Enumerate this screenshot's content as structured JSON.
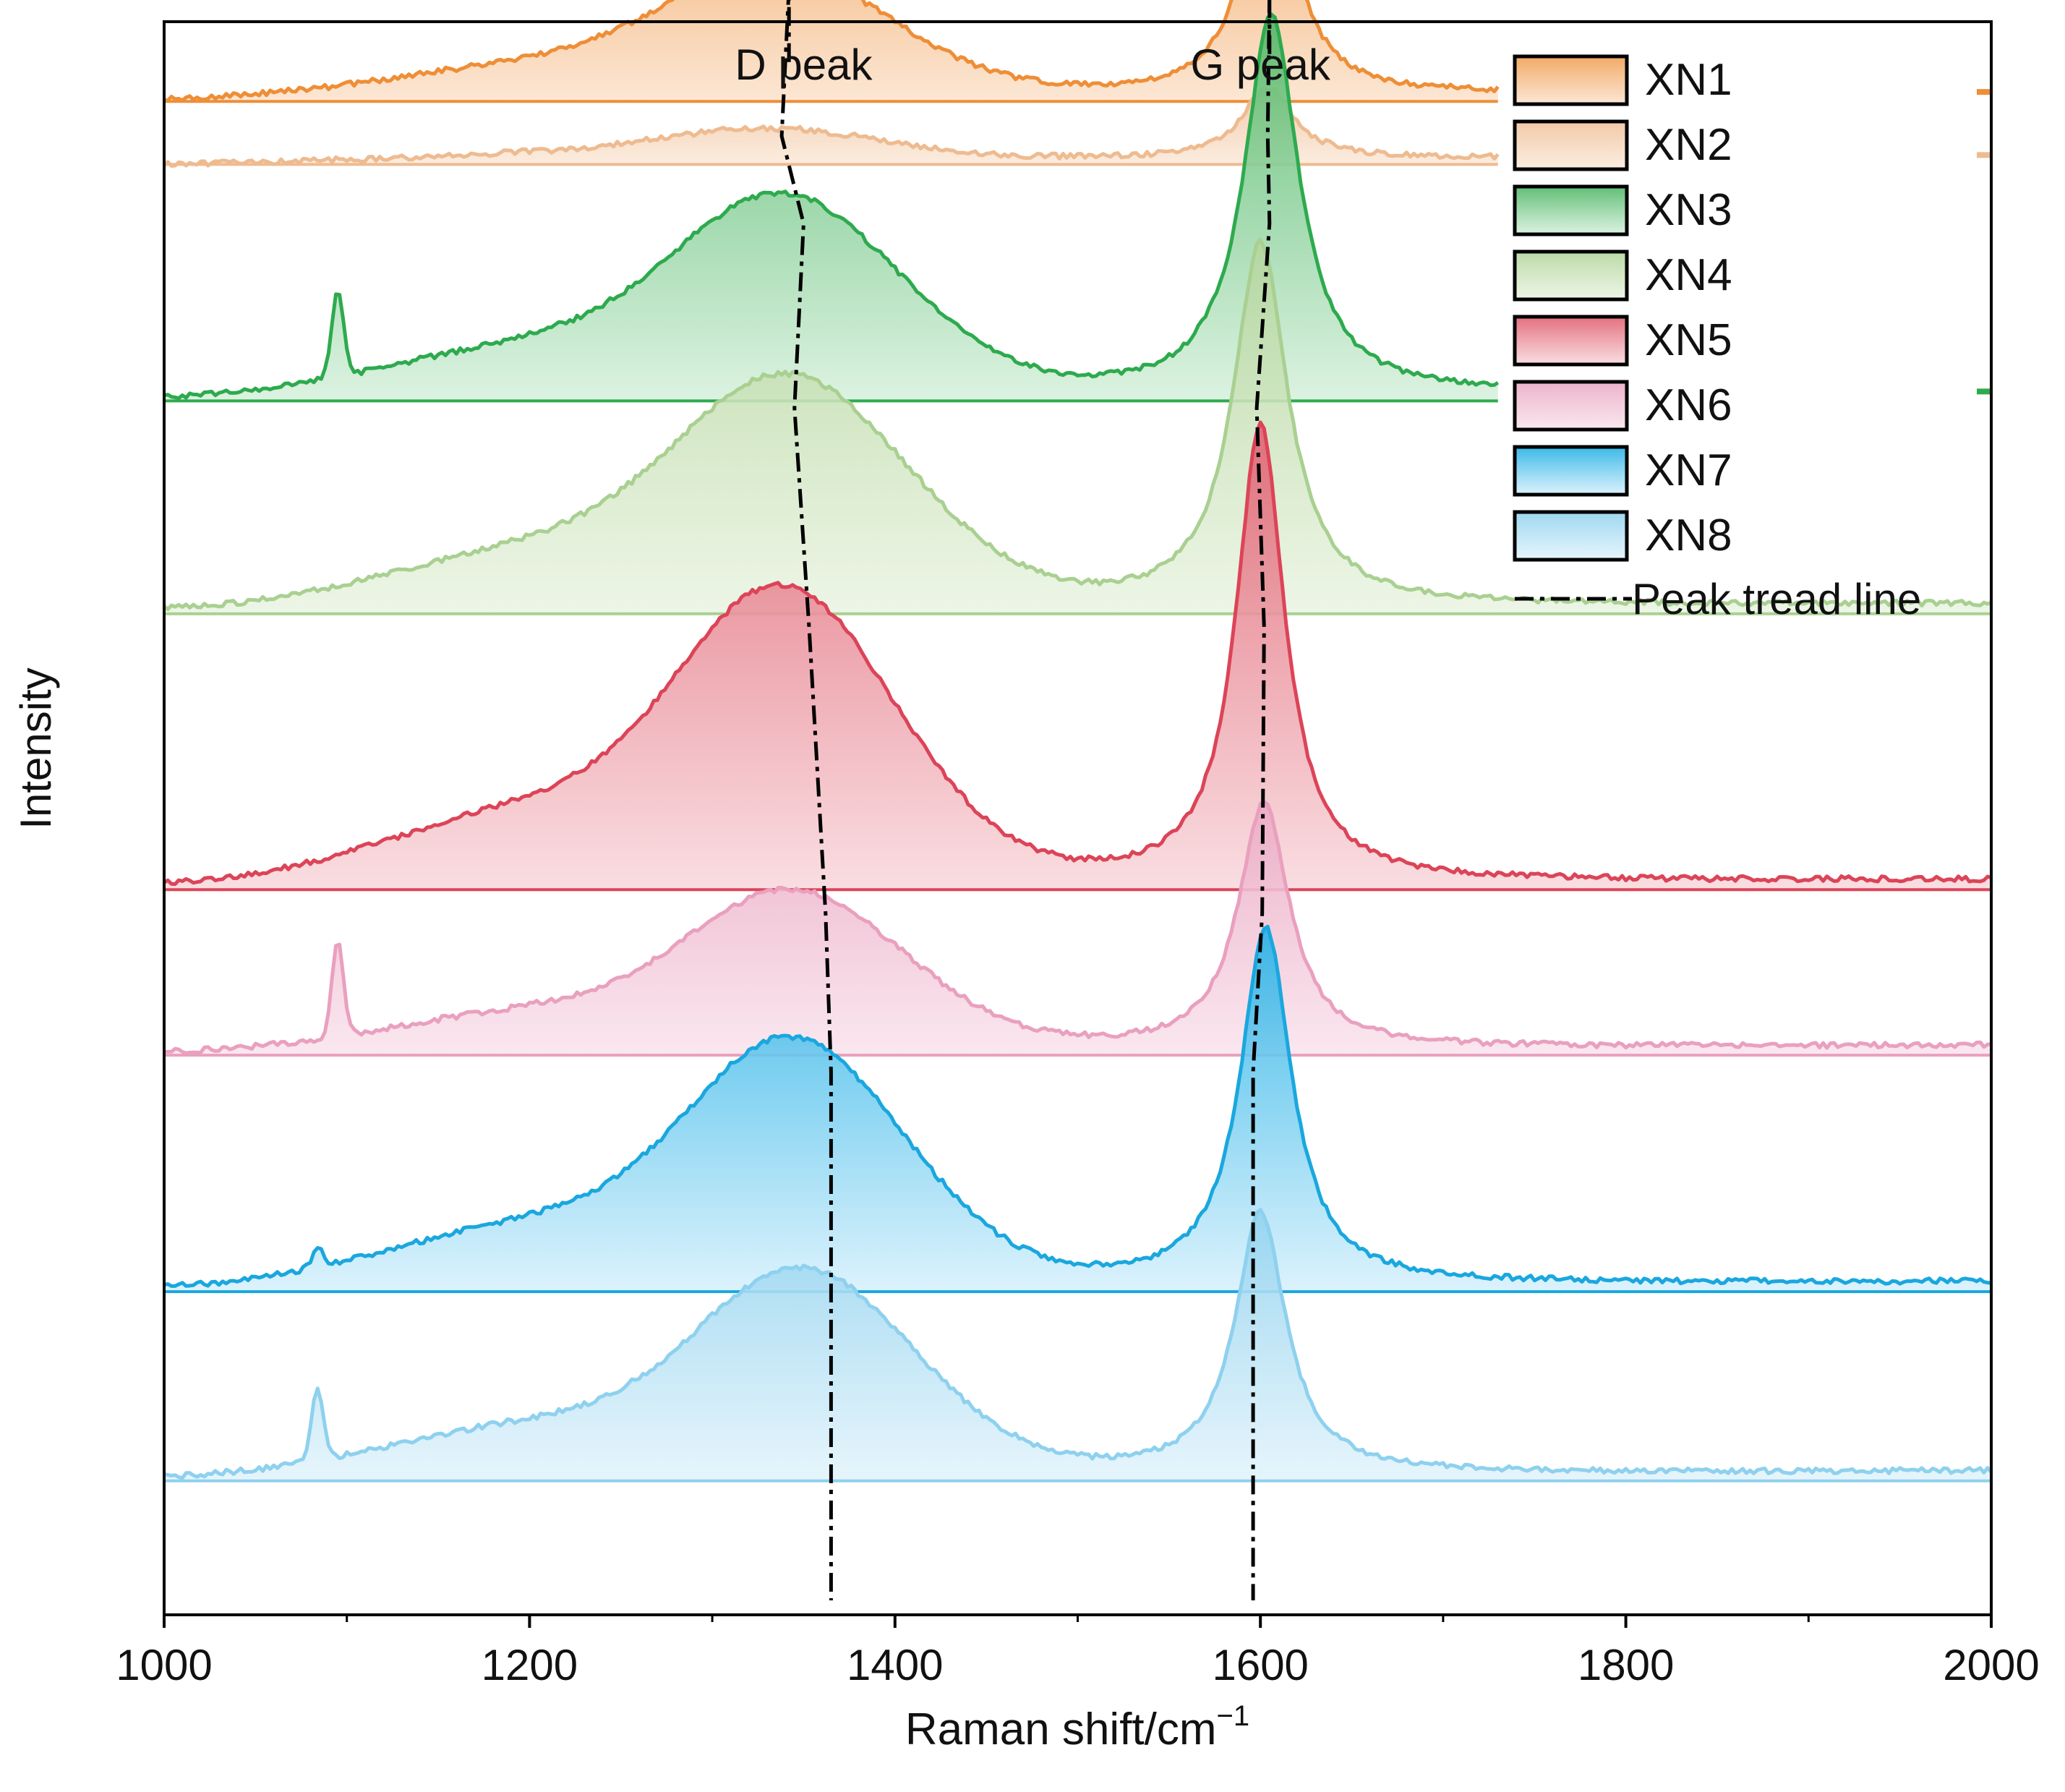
{
  "chart_data": {
    "type": "line",
    "subtype": "stacked-offset-spectra",
    "title": "",
    "xlabel": "Raman shift/cm",
    "xlabel_superscript": "−1",
    "ylabel": "Intensity",
    "xlim": [
      1000,
      2000
    ],
    "xticks": [
      "1000",
      "1200",
      "1400",
      "1600",
      "1800",
      "2000"
    ],
    "yticks_visible": false,
    "legend_position": "top-right",
    "annotations": [
      {
        "text": "D peak",
        "x": 1350
      },
      {
        "text": "G peak",
        "x": 1600
      }
    ],
    "trend_line": {
      "name": "Peak tread line",
      "style": "dash-dot",
      "color": "#000000",
      "d_peak_x": [
        1342,
        1338,
        1350,
        1345,
        1353,
        1362,
        1365
      ],
      "g_peak_x": [
        1605,
        1604,
        1605,
        1598,
        1602,
        1601,
        1596
      ]
    },
    "series": [
      {
        "name": "XN1",
        "color": "#EE8E37",
        "fill_top": "#F0A055",
        "fill_bottom": "#FBE2CC",
        "baseline": 9.6,
        "d_pos": 1340,
        "d_height": 0.8,
        "d_width": 60,
        "g_pos": 1605,
        "g_height": 1.45,
        "g_width": 17,
        "spike_pos": null,
        "spike_height": 0,
        "clip_end": 1730
      },
      {
        "name": "XN2",
        "color": "#EEBB90",
        "fill_top": "#F0C49E",
        "fill_bottom": "#FBEADB",
        "baseline": 9.2,
        "d_pos": 1338,
        "d_height": 0.2,
        "d_width": 60,
        "g_pos": 1604,
        "g_height": 0.45,
        "g_width": 17,
        "spike_pos": null,
        "spike_height": 0,
        "clip_end": 1730
      },
      {
        "name": "XN3",
        "color": "#2EAA4E",
        "fill_top": "#4FB766",
        "fill_bottom": "#D6F0DC",
        "baseline": 7.7,
        "d_pos": 1345,
        "d_height": 1.25,
        "d_width": 60,
        "g_pos": 1606,
        "g_height": 2.4,
        "g_width": 18,
        "spike_pos": 1095,
        "spike_height": 0.55,
        "clip_end": 1730
      },
      {
        "name": "XN4",
        "color": "#A9D091",
        "fill_top": "#B4D69E",
        "fill_bottom": "#EAF4E2",
        "baseline": 6.35,
        "d_pos": 1348,
        "d_height": 1.45,
        "d_width": 62,
        "g_pos": 1600,
        "g_height": 2.3,
        "g_width": 18,
        "spike_pos": null,
        "spike_height": 0,
        "clip_end": null
      },
      {
        "name": "XN5",
        "color": "#DC4458",
        "fill_top": "#E06070",
        "fill_bottom": "#F8D8DC",
        "baseline": 4.6,
        "d_pos": 1345,
        "d_height": 1.85,
        "d_width": 58,
        "g_pos": 1600,
        "g_height": 2.9,
        "g_width": 16,
        "spike_pos": null,
        "spike_height": 0,
        "clip_end": null
      },
      {
        "name": "XN6",
        "color": "#E9A0BE",
        "fill_top": "#EBAAC4",
        "fill_bottom": "#F9E3EC",
        "baseline": 3.55,
        "d_pos": 1350,
        "d_height": 1.0,
        "d_width": 58,
        "g_pos": 1602,
        "g_height": 1.55,
        "g_width": 17,
        "spike_pos": 1095,
        "spike_height": 0.6,
        "clip_end": null
      },
      {
        "name": "XN7",
        "color": "#1AA7DE",
        "fill_top": "#25B1E6",
        "fill_bottom": "#D6F0FC",
        "baseline": 2.05,
        "d_pos": 1350,
        "d_height": 1.55,
        "d_width": 58,
        "g_pos": 1603,
        "g_height": 2.25,
        "g_width": 17,
        "spike_pos": 1084,
        "spike_height": 0.12,
        "clip_end": null
      },
      {
        "name": "XN8",
        "color": "#8ED1EE",
        "fill_top": "#93D3EF",
        "fill_bottom": "#E2F3FB",
        "baseline": 0.85,
        "d_pos": 1355,
        "d_height": 1.3,
        "d_width": 58,
        "g_pos": 1600,
        "g_height": 1.65,
        "g_width": 17,
        "spike_pos": 1084,
        "spike_height": 0.45,
        "clip_end": null
      }
    ]
  }
}
